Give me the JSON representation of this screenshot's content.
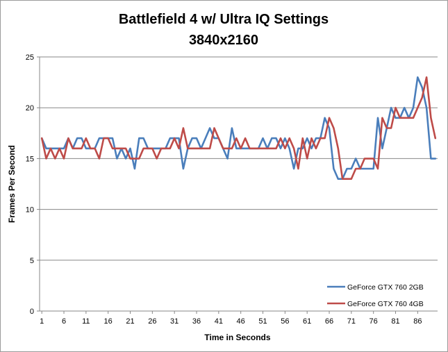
{
  "chart_data": {
    "type": "line",
    "title": "Battlefield 4 w/ Ultra IQ Settings",
    "subtitle": "3840x2160",
    "xlabel": "Time in Seconds",
    "ylabel": "Frames Per Second",
    "ylim": [
      0,
      25
    ],
    "yticks": [
      0,
      5,
      10,
      15,
      20,
      25
    ],
    "xtick_labels": [
      "1",
      "6",
      "11",
      "16",
      "21",
      "26",
      "31",
      "36",
      "41",
      "46",
      "51",
      "56",
      "61",
      "66",
      "71",
      "76",
      "81",
      "86"
    ],
    "grid": "horizontal",
    "legend_position": "bottom-right",
    "x": [
      1,
      2,
      3,
      4,
      5,
      6,
      7,
      8,
      9,
      10,
      11,
      12,
      13,
      14,
      15,
      16,
      17,
      18,
      19,
      20,
      21,
      22,
      23,
      24,
      25,
      26,
      27,
      28,
      29,
      30,
      31,
      32,
      33,
      34,
      35,
      36,
      37,
      38,
      39,
      40,
      41,
      42,
      43,
      44,
      45,
      46,
      47,
      48,
      49,
      50,
      51,
      52,
      53,
      54,
      55,
      56,
      57,
      58,
      59,
      60,
      61,
      62,
      63,
      64,
      65,
      66,
      67,
      68,
      69,
      70,
      71,
      72,
      73,
      74,
      75,
      76,
      77,
      78,
      79,
      80,
      81,
      82,
      83,
      84,
      85,
      86,
      87,
      88,
      89,
      90
    ],
    "series": [
      {
        "name": "GeForce GTX 760 2GB",
        "color": "#4a7ebb",
        "values": [
          17,
          16,
          16,
          16,
          16,
          16,
          17,
          16,
          17,
          17,
          16,
          16,
          16,
          17,
          17,
          17,
          17,
          15,
          16,
          15,
          16,
          14,
          17,
          17,
          16,
          16,
          16,
          16,
          16,
          17,
          17,
          17,
          14,
          16,
          17,
          17,
          16,
          17,
          18,
          17,
          17,
          16,
          15,
          18,
          16,
          16,
          16,
          16,
          16,
          16,
          17,
          16,
          17,
          17,
          16,
          17,
          16,
          14,
          16,
          16,
          17,
          16,
          17,
          17,
          19,
          18,
          14,
          13,
          13,
          14,
          14,
          15,
          14,
          14,
          14,
          14,
          19,
          16,
          18,
          20,
          19,
          19,
          20,
          19,
          20,
          23,
          22,
          20,
          15,
          15
        ]
      },
      {
        "name": "GeForce GTX 760 4GB",
        "color": "#be4b48",
        "values": [
          17,
          15,
          16,
          15,
          16,
          15,
          17,
          16,
          16,
          16,
          17,
          16,
          16,
          15,
          17,
          17,
          16,
          16,
          16,
          16,
          15,
          15,
          15,
          16,
          16,
          16,
          15,
          16,
          16,
          16,
          17,
          16,
          18,
          16,
          16,
          16,
          16,
          16,
          16,
          18,
          17,
          16,
          16,
          16,
          17,
          16,
          17,
          16,
          16,
          16,
          16,
          16,
          16,
          16,
          17,
          16,
          17,
          16,
          14,
          17,
          15,
          17,
          16,
          17,
          17,
          19,
          18,
          16,
          13,
          13,
          13,
          14,
          14,
          15,
          15,
          15,
          14,
          19,
          18,
          18,
          20,
          19,
          19,
          19,
          19,
          20,
          21,
          23,
          19,
          17
        ]
      }
    ]
  }
}
